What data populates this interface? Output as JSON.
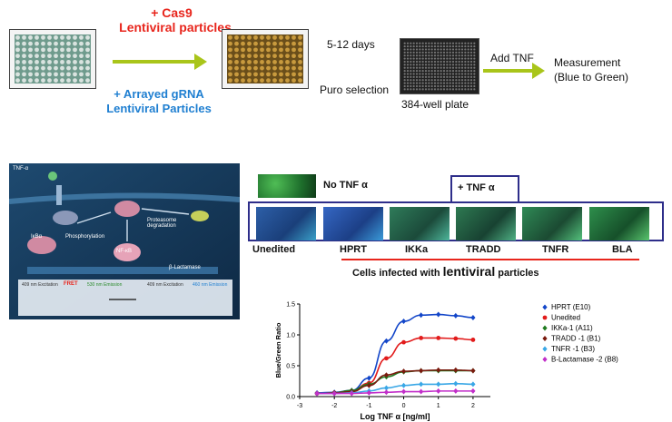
{
  "workflow": {
    "cas9_line1": "+ Cas9",
    "cas9_line2": "Lentiviral particles",
    "grna_line1": "+ Arrayed gRNA",
    "grna_line2": "Lentiviral Particles",
    "days": "5-12 days",
    "puro": "Puro selection",
    "plate_label": "384-well plate",
    "add_tnf": "Add TNF",
    "measure_line1": "Measurement",
    "measure_line2": "(Blue to Green)",
    "arrow_color": "#a9c51a",
    "red_color": "#e8251c",
    "blue_color": "#1f7fd1"
  },
  "pathway": {
    "tnf": "TNF-α",
    "ikb": "IκBα",
    "nfkb": "NF-κB",
    "phos": "Phosphorylation",
    "proteasome": "Proteasome degradation",
    "bla": "β-Lactamase",
    "fret": "FRET",
    "exc1": "409 nm Excitation",
    "exc2": "530 nm Emission",
    "exc3": "409 nm Excitation",
    "exc4": "460 nm Emission"
  },
  "micrographs": {
    "no_tnf": "No TNF α",
    "plus_tnf": "+ TNF α",
    "labels": [
      "Unedited",
      "HPRT",
      "IKKa",
      "TRADD",
      "TNFR",
      "BLA"
    ],
    "caption_prefix": "Cells infected with ",
    "caption_bold": "lentiviral",
    "caption_suffix": " particles"
  },
  "chart_data": {
    "type": "scatter",
    "xlabel": "Log TNF α [ng/ml]",
    "ylabel": "Blue/Green Ratio",
    "xlim": [
      -3,
      2.5
    ],
    "ylim": [
      0,
      1.5
    ],
    "x_ticks": [
      "-3",
      "-2",
      "-1",
      "0",
      "1",
      "2"
    ],
    "y_ticks": [
      "0.0",
      "0.5",
      "1.0",
      "1.5"
    ],
    "legend_position": "right",
    "x": [
      -2.5,
      -2,
      -1.5,
      -1,
      -0.5,
      0,
      0.5,
      1,
      1.5,
      2
    ],
    "series": [
      {
        "name": "HPRT (E10)",
        "color": "#1346c9",
        "marker": "diamond",
        "values": [
          0.06,
          0.07,
          0.1,
          0.3,
          0.9,
          1.22,
          1.32,
          1.33,
          1.31,
          1.28
        ]
      },
      {
        "name": "Unedited",
        "color": "#e21b1b",
        "marker": "circle",
        "values": [
          0.05,
          0.06,
          0.09,
          0.22,
          0.62,
          0.88,
          0.95,
          0.95,
          0.94,
          0.92
        ]
      },
      {
        "name": "IKKa-1 (A11)",
        "color": "#1f7a1f",
        "marker": "diamond",
        "values": [
          0.05,
          0.06,
          0.1,
          0.2,
          0.32,
          0.4,
          0.42,
          0.42,
          0.42,
          0.42
        ]
      },
      {
        "name": "TRADD -1 (B1)",
        "color": "#7a1a0e",
        "marker": "diamond",
        "values": [
          0.05,
          0.06,
          0.08,
          0.18,
          0.35,
          0.41,
          0.42,
          0.43,
          0.43,
          0.42
        ]
      },
      {
        "name": "TNFR -1 (B3)",
        "color": "#39a7e6",
        "marker": "diamond",
        "values": [
          0.05,
          0.05,
          0.06,
          0.09,
          0.14,
          0.18,
          0.2,
          0.2,
          0.21,
          0.2
        ]
      },
      {
        "name": "B-Lactamase -2 (B8)",
        "color": "#c22fc9",
        "marker": "diamond",
        "values": [
          0.05,
          0.05,
          0.05,
          0.06,
          0.07,
          0.08,
          0.08,
          0.09,
          0.09,
          0.09
        ]
      }
    ]
  }
}
